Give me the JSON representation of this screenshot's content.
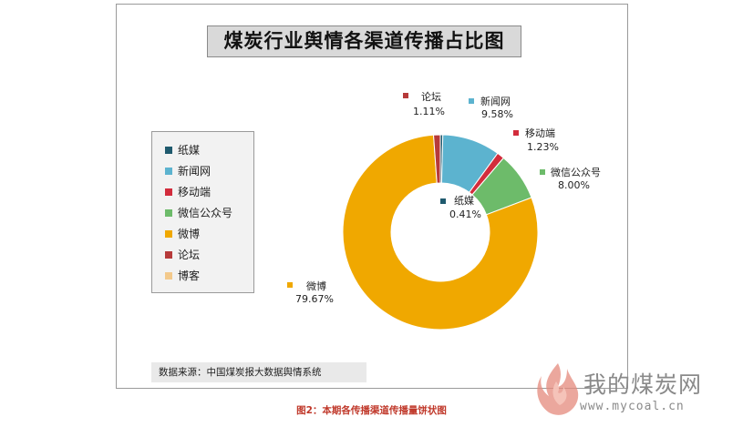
{
  "chart_data": {
    "type": "pie",
    "title": "煤炭行业舆情各渠道传播占比图",
    "slices": [
      {
        "name": "纸媒",
        "value": 0.41,
        "label": "0.41%",
        "color": "#1f5a6e"
      },
      {
        "name": "新闻网",
        "value": 9.58,
        "label": "9.58%",
        "color": "#5cb3cf"
      },
      {
        "name": "移动端",
        "value": 1.23,
        "label": "1.23%",
        "color": "#d22c3c"
      },
      {
        "name": "微信公众号",
        "value": 8.0,
        "label": "8.00%",
        "color": "#6dbb6a"
      },
      {
        "name": "微博",
        "value": 79.67,
        "label": "79.67%",
        "color": "#f0a800"
      },
      {
        "name": "论坛",
        "value": 1.11,
        "label": "1.11%",
        "color": "#b63a3a"
      },
      {
        "name": "博客",
        "value": 0.0,
        "label": "",
        "color": "#f3c98b"
      }
    ],
    "legend": [
      "纸媒",
      "新闻网",
      "移动端",
      "微信公众号",
      "微博",
      "论坛",
      "博客"
    ],
    "legend_position": "left",
    "donut": true
  },
  "source_text": "数据来源：中国煤炭报大数据舆情系统",
  "caption": "图2：本期各传播渠道传播量饼状图",
  "watermark": {
    "name": "我的煤炭网",
    "url": "www.mycoal.cn"
  }
}
